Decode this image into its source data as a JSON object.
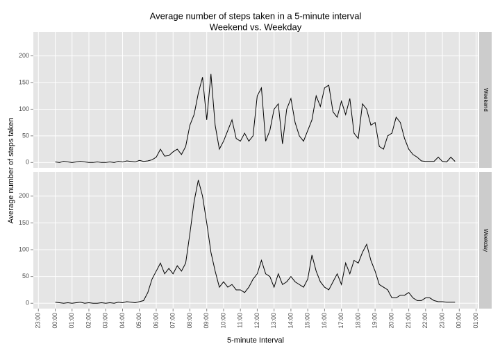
{
  "chart_data": {
    "type": "line",
    "title": [
      "Average number of steps taken in a 5-minute interval",
      "Weekend vs. Weekday"
    ],
    "x_label": "5-minute Interval",
    "y_label": "Average number of steps taken",
    "xlim": [
      -1.3,
      25.1
    ],
    "ylim": [
      -10,
      245
    ],
    "yticks": [
      0,
      50,
      100,
      150,
      200
    ],
    "grid": true,
    "xticks": [
      {
        "value": -1,
        "label": "23:00"
      },
      {
        "value": 0,
        "label": "00:00"
      },
      {
        "value": 1,
        "label": "01:00"
      },
      {
        "value": 2,
        "label": "02:00"
      },
      {
        "value": 3,
        "label": "03:00"
      },
      {
        "value": 4,
        "label": "04:00"
      },
      {
        "value": 5,
        "label": "05:00"
      },
      {
        "value": 6,
        "label": "06:00"
      },
      {
        "value": 7,
        "label": "07:00"
      },
      {
        "value": 8,
        "label": "08:00"
      },
      {
        "value": 9,
        "label": "09:00"
      },
      {
        "value": 10,
        "label": "10:00"
      },
      {
        "value": 11,
        "label": "11:00"
      },
      {
        "value": 12,
        "label": "12:00"
      },
      {
        "value": 13,
        "label": "13:00"
      },
      {
        "value": 14,
        "label": "14:00"
      },
      {
        "value": 15,
        "label": "15:00"
      },
      {
        "value": 16,
        "label": "16:00"
      },
      {
        "value": 17,
        "label": "17:00"
      },
      {
        "value": 18,
        "label": "18:00"
      },
      {
        "value": 19,
        "label": "19:00"
      },
      {
        "value": 20,
        "label": "20:00"
      },
      {
        "value": 21,
        "label": "21:00"
      },
      {
        "value": 22,
        "label": "22:00"
      },
      {
        "value": 23,
        "label": "23:00"
      },
      {
        "value": 24,
        "label": "00:00"
      },
      {
        "value": 25,
        "label": "01:00"
      }
    ],
    "x": [
      0,
      0.25,
      0.5,
      0.75,
      1,
      1.25,
      1.5,
      1.75,
      2,
      2.25,
      2.5,
      2.75,
      3,
      3.25,
      3.5,
      3.75,
      4,
      4.25,
      4.5,
      4.75,
      5,
      5.25,
      5.5,
      5.75,
      6,
      6.25,
      6.5,
      6.75,
      7,
      7.25,
      7.5,
      7.75,
      8,
      8.25,
      8.5,
      8.75,
      9,
      9.25,
      9.5,
      9.75,
      10,
      10.25,
      10.5,
      10.75,
      11,
      11.25,
      11.5,
      11.75,
      12,
      12.25,
      12.5,
      12.75,
      13,
      13.25,
      13.5,
      13.75,
      14,
      14.25,
      14.5,
      14.75,
      15,
      15.25,
      15.5,
      15.75,
      16,
      16.25,
      16.5,
      16.75,
      17,
      17.25,
      17.5,
      17.75,
      18,
      18.25,
      18.5,
      18.75,
      19,
      19.25,
      19.5,
      19.75,
      20,
      20.25,
      20.5,
      20.75,
      21,
      21.25,
      21.5,
      21.75,
      22,
      22.25,
      22.5,
      22.75,
      23,
      23.25,
      23.5,
      23.75
    ],
    "facets": [
      {
        "name": "Weekend",
        "color": "#000000",
        "values": [
          1,
          0,
          2,
          1,
          0,
          1,
          2,
          1,
          0,
          0,
          1,
          0,
          0,
          1,
          0,
          2,
          1,
          3,
          2,
          1,
          4,
          2,
          3,
          5,
          10,
          25,
          12,
          13,
          20,
          25,
          15,
          30,
          70,
          90,
          130,
          160,
          80,
          166,
          70,
          25,
          40,
          60,
          80,
          45,
          40,
          55,
          40,
          50,
          125,
          140,
          40,
          60,
          100,
          110,
          35,
          100,
          120,
          75,
          50,
          40,
          60,
          80,
          125,
          105,
          140,
          145,
          95,
          85,
          115,
          90,
          120,
          55,
          45,
          110,
          100,
          70,
          75,
          30,
          25,
          50,
          55,
          85,
          75,
          45,
          25,
          15,
          10,
          3,
          2,
          2,
          2,
          10,
          2,
          1,
          10,
          2
        ]
      },
      {
        "name": "Weekday",
        "color": "#000000",
        "values": [
          2,
          1,
          0,
          1,
          0,
          1,
          2,
          0,
          1,
          0,
          0,
          1,
          0,
          1,
          0,
          2,
          1,
          3,
          2,
          1,
          3,
          5,
          20,
          45,
          60,
          75,
          55,
          65,
          55,
          70,
          60,
          75,
          130,
          190,
          230,
          200,
          150,
          95,
          60,
          30,
          40,
          30,
          35,
          25,
          25,
          20,
          30,
          45,
          55,
          80,
          55,
          50,
          30,
          55,
          35,
          40,
          50,
          40,
          35,
          30,
          45,
          90,
          60,
          40,
          30,
          25,
          40,
          55,
          35,
          75,
          55,
          80,
          75,
          95,
          110,
          80,
          60,
          35,
          30,
          25,
          10,
          10,
          15,
          15,
          20,
          10,
          5,
          5,
          10,
          10,
          5,
          3,
          3,
          2,
          2,
          2
        ]
      }
    ]
  }
}
